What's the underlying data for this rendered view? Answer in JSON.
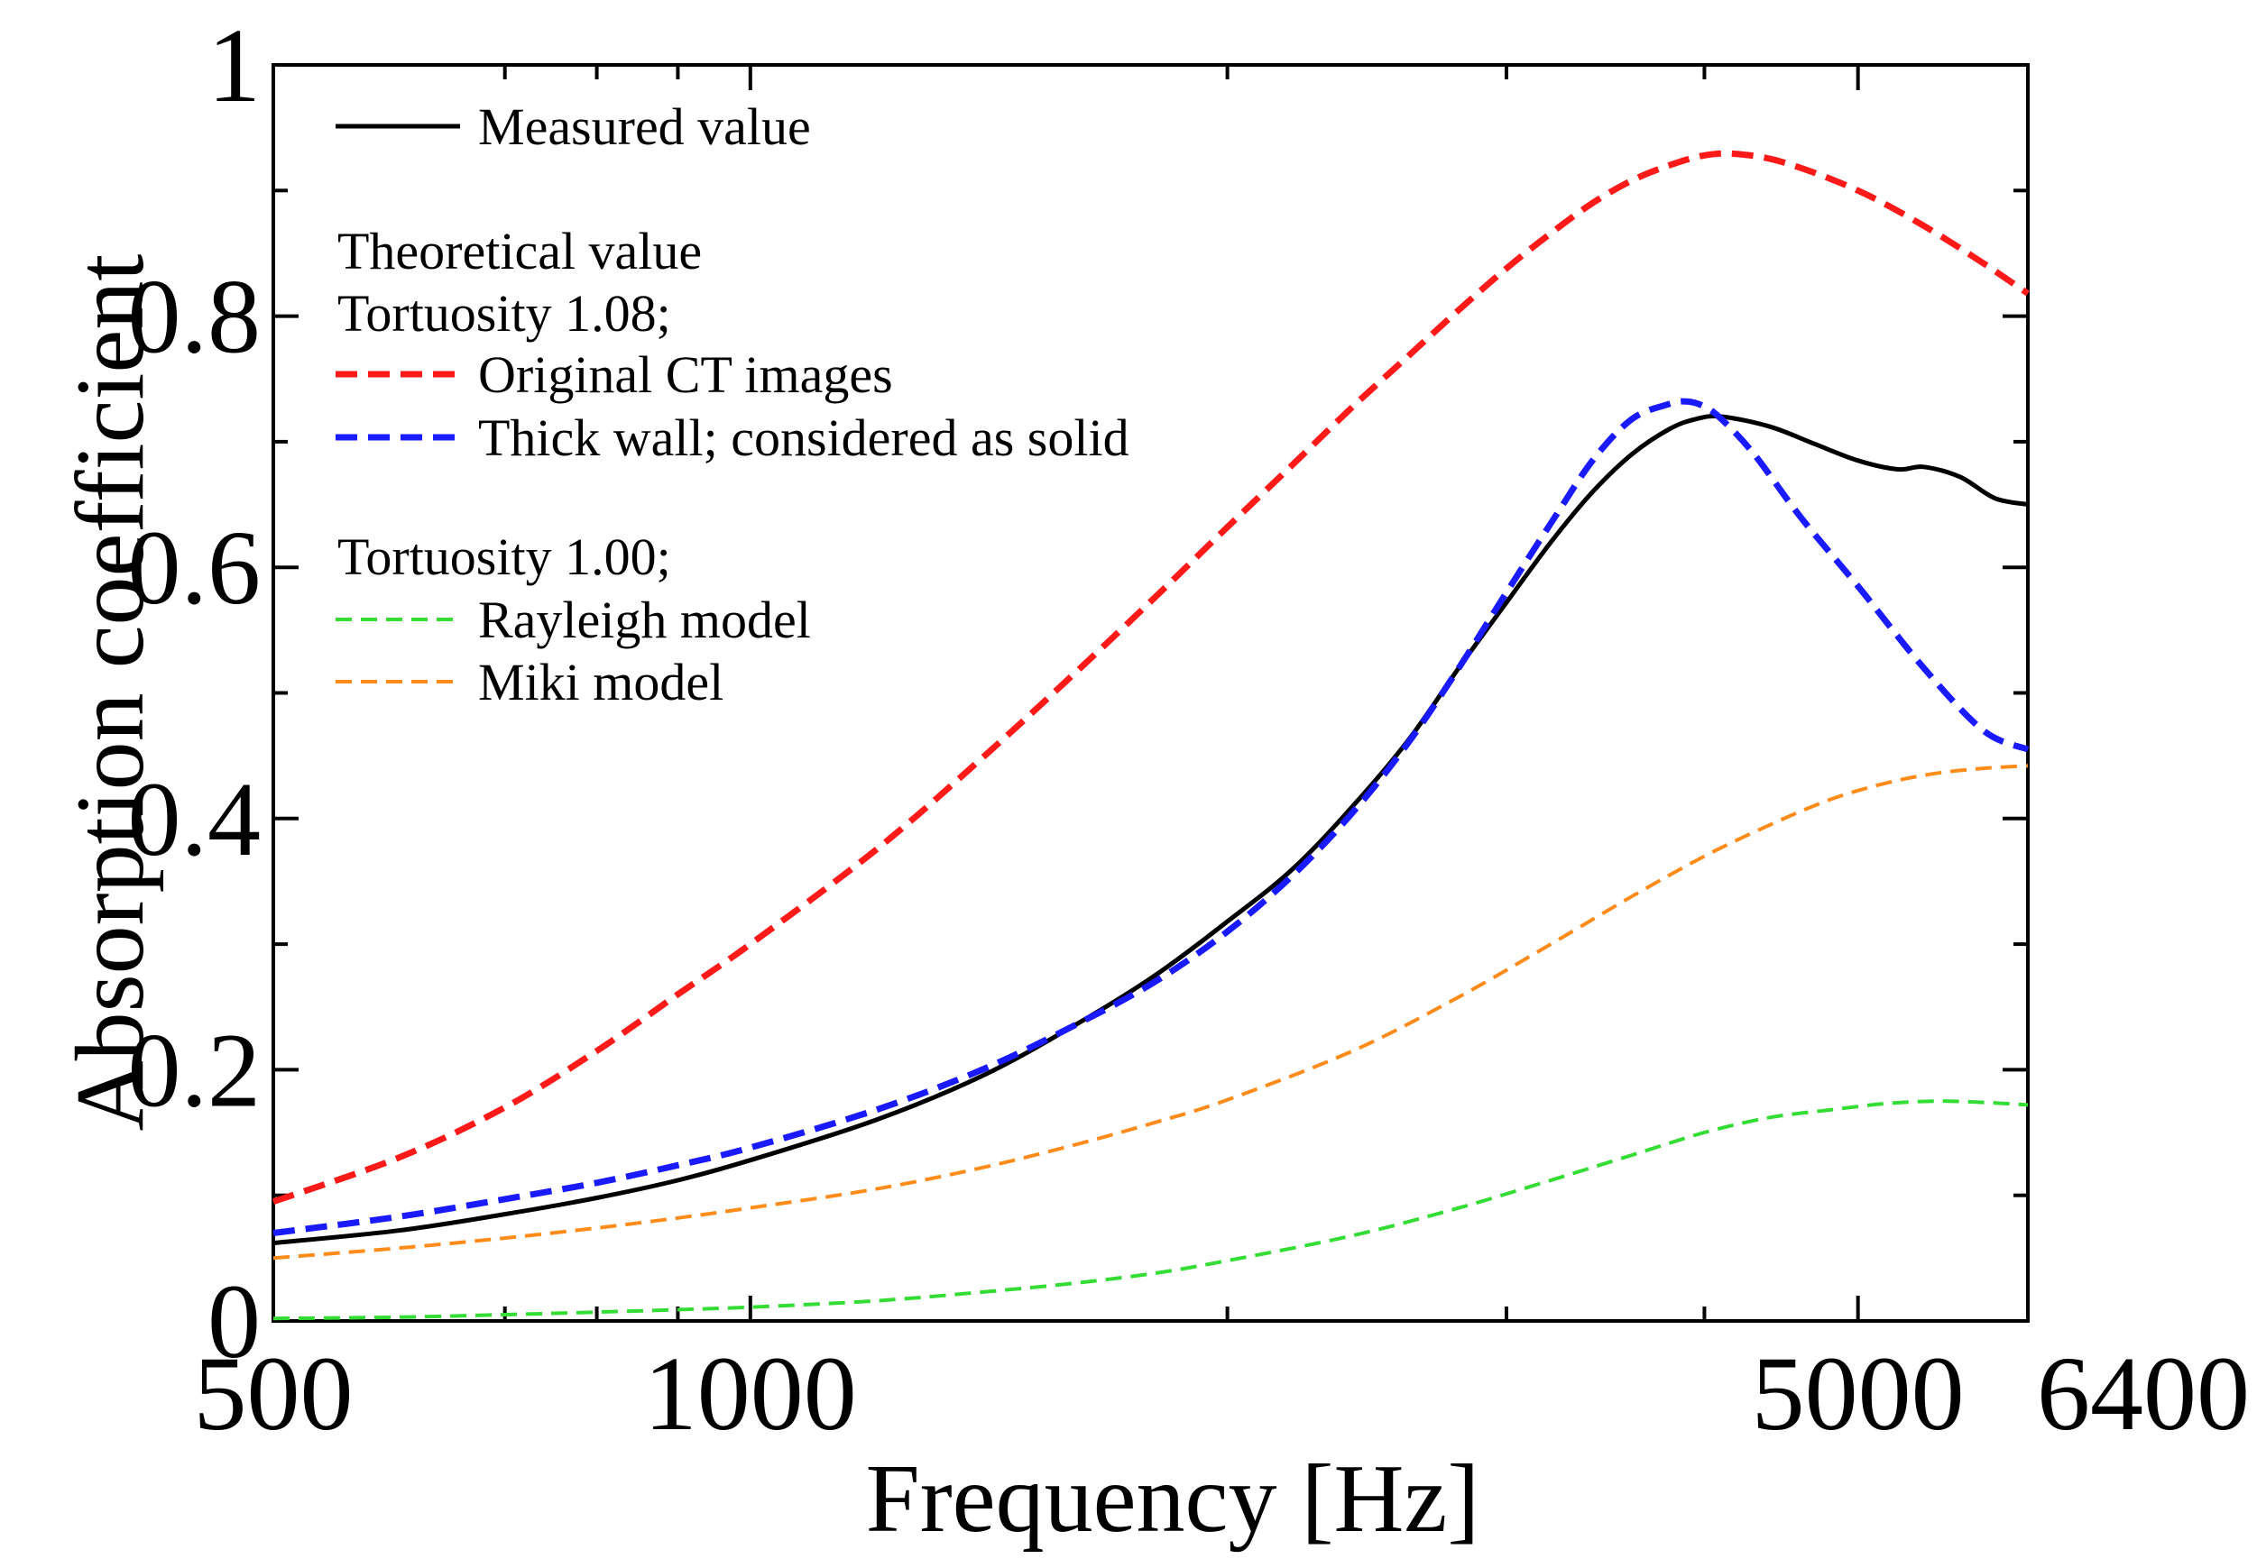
{
  "chart_data": {
    "type": "line",
    "xscale": "log",
    "xlabel": "Frequency [Hz]",
    "ylabel": "Absorption coefficient",
    "xlim": [
      500,
      6400
    ],
    "ylim": [
      0,
      1
    ],
    "x_tick_labels": [
      "500",
      "1000",
      "5000",
      "6400"
    ],
    "x_tick_values": [
      500,
      1000,
      5000,
      6400
    ],
    "x_minor_ticks": [
      700,
      800,
      900,
      2000,
      3000,
      4000
    ],
    "y_tick_labels": [
      "0",
      "0.2",
      "0.4",
      "0.6",
      "0.8",
      "1"
    ],
    "y_tick_values": [
      0,
      0.2,
      0.4,
      0.6,
      0.8,
      1
    ],
    "grid": false,
    "legend": {
      "position": "top-left",
      "measured_label": "Measured value",
      "heading_theoretical": "Theoretical value",
      "heading_tortuosity_108": "Tortuosity 1.08;",
      "original_label": "Original CT images",
      "thick_wall_label": "Thick wall; considered as solid",
      "heading_tortuosity_100": "Tortuosity 1.00;",
      "rayleigh_label": "Rayleigh model",
      "miki_label": "Miki model"
    },
    "series": [
      {
        "name": "Measured value",
        "color": "#000000",
        "dash": "solid",
        "x": [
          500,
          600,
          700,
          800,
          900,
          1000,
          1200,
          1400,
          1600,
          1800,
          2000,
          2200,
          2400,
          2600,
          2800,
          3000,
          3200,
          3400,
          3600,
          3800,
          3950,
          4100,
          4400,
          4700,
          5000,
          5300,
          5500,
          5800,
          6100,
          6400
        ],
        "y": [
          0.062,
          0.072,
          0.085,
          0.098,
          0.112,
          0.128,
          0.16,
          0.195,
          0.235,
          0.275,
          0.318,
          0.36,
          0.41,
          0.462,
          0.52,
          0.572,
          0.62,
          0.66,
          0.69,
          0.71,
          0.718,
          0.72,
          0.712,
          0.698,
          0.685,
          0.678,
          0.68,
          0.672,
          0.655,
          0.65
        ]
      },
      {
        "name": "Original CT images",
        "color": "#ff1a1a",
        "dash": "long-dash",
        "x": [
          500,
          600,
          700,
          800,
          900,
          1000,
          1200,
          1400,
          1600,
          1800,
          2000,
          2200,
          2400,
          2600,
          2800,
          3000,
          3200,
          3400,
          3600,
          3800,
          4000,
          4200,
          4500,
          5000,
          5500,
          6000,
          6400
        ],
        "y": [
          0.095,
          0.13,
          0.17,
          0.215,
          0.26,
          0.3,
          0.375,
          0.448,
          0.515,
          0.576,
          0.632,
          0.682,
          0.728,
          0.768,
          0.805,
          0.838,
          0.866,
          0.89,
          0.908,
          0.92,
          0.928,
          0.929,
          0.922,
          0.9,
          0.872,
          0.842,
          0.818
        ]
      },
      {
        "name": "Thick wall; considered as solid",
        "color": "#1a1aff",
        "dash": "long-dash",
        "x": [
          500,
          600,
          700,
          800,
          900,
          1000,
          1200,
          1400,
          1600,
          1800,
          2000,
          2200,
          2400,
          2600,
          2800,
          3000,
          3200,
          3400,
          3600,
          3800,
          3900,
          4000,
          4100,
          4300,
          4600,
          5000,
          5500,
          6000,
          6400
        ],
        "y": [
          0.07,
          0.083,
          0.097,
          0.11,
          0.124,
          0.138,
          0.168,
          0.2,
          0.235,
          0.27,
          0.31,
          0.355,
          0.405,
          0.46,
          0.52,
          0.58,
          0.635,
          0.685,
          0.718,
          0.73,
          0.732,
          0.728,
          0.718,
          0.69,
          0.64,
          0.585,
          0.52,
          0.47,
          0.455
        ]
      },
      {
        "name": "Rayleigh model",
        "color": "#33dd33",
        "dash": "short-dash",
        "x": [
          500,
          600,
          700,
          800,
          900,
          1000,
          1200,
          1400,
          1600,
          1800,
          2000,
          2400,
          2800,
          3200,
          3600,
          4000,
          4400,
          4800,
          5200,
          5600,
          6000,
          6400
        ],
        "y": [
          0.002,
          0.003,
          0.005,
          0.007,
          0.009,
          0.011,
          0.016,
          0.023,
          0.03,
          0.038,
          0.048,
          0.068,
          0.09,
          0.112,
          0.132,
          0.15,
          0.162,
          0.168,
          0.173,
          0.175,
          0.174,
          0.172
        ]
      },
      {
        "name": "Miki model",
        "color": "#ff8c1a",
        "dash": "short-dash",
        "x": [
          500,
          600,
          700,
          800,
          900,
          1000,
          1200,
          1400,
          1600,
          1800,
          2000,
          2400,
          2800,
          3200,
          3600,
          4000,
          4400,
          4800,
          5200,
          5600,
          6000,
          6400
        ],
        "y": [
          0.05,
          0.058,
          0.066,
          0.074,
          0.082,
          0.09,
          0.105,
          0.122,
          0.14,
          0.158,
          0.176,
          0.215,
          0.258,
          0.3,
          0.338,
          0.37,
          0.395,
          0.415,
          0.428,
          0.436,
          0.44,
          0.442
        ]
      }
    ]
  }
}
